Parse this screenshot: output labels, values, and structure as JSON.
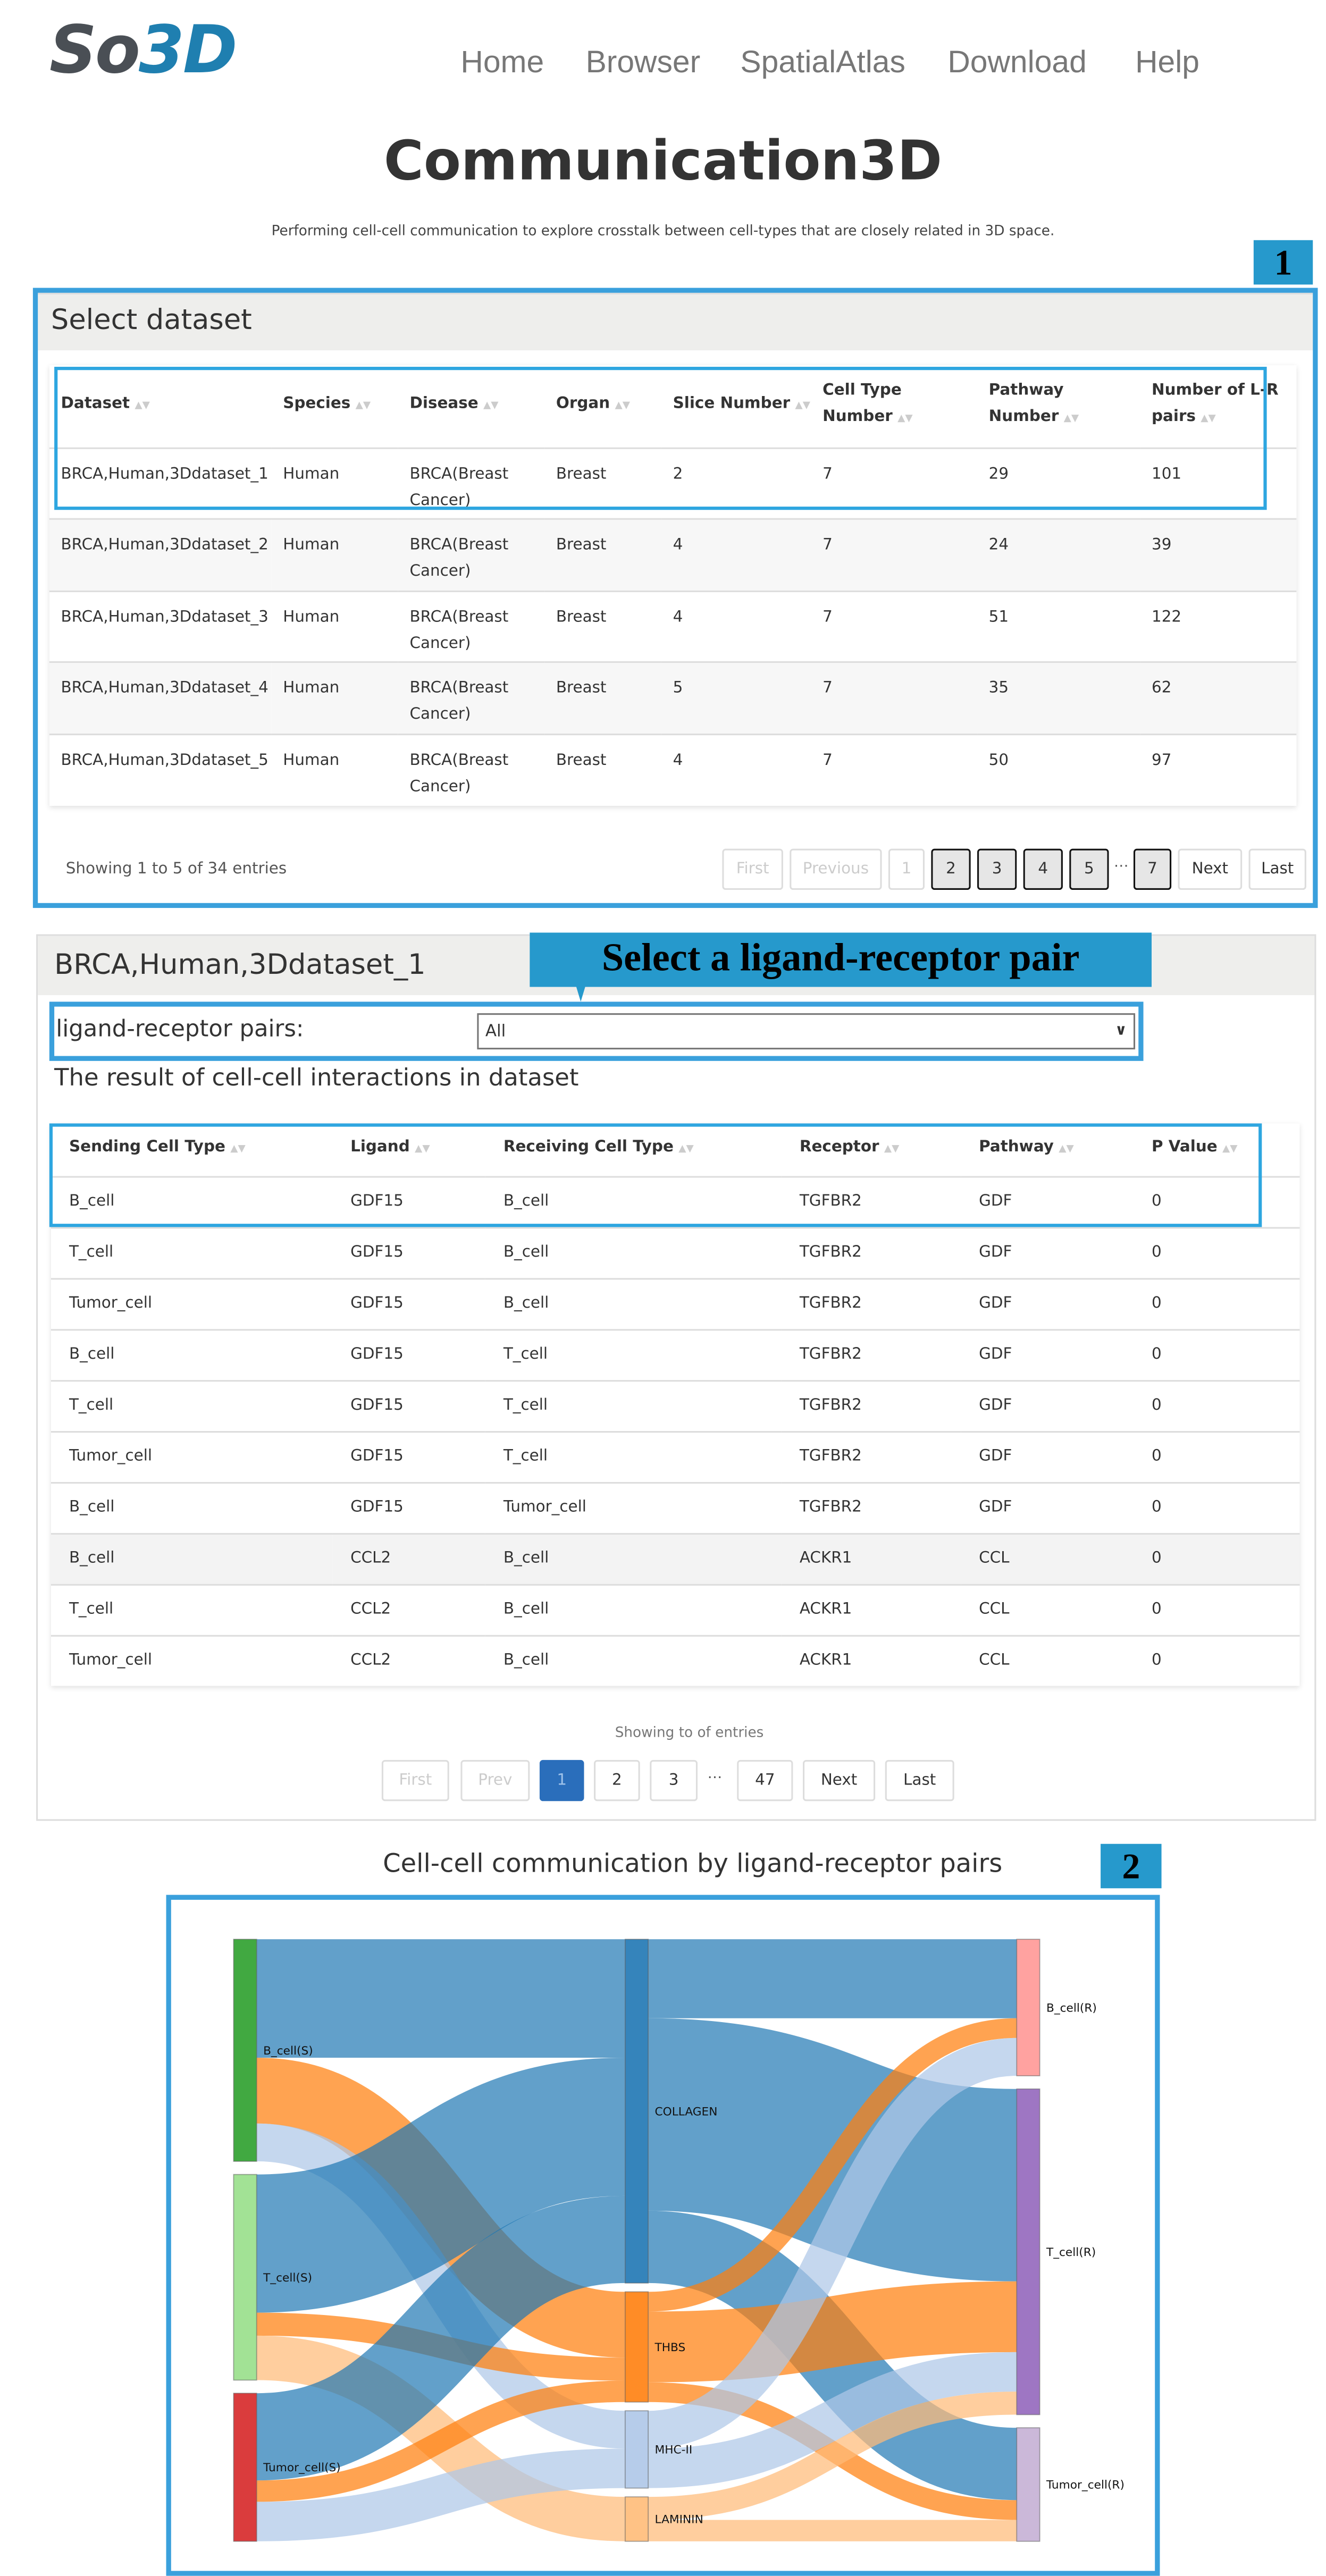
{
  "logo": {
    "part1": "So",
    "part2": "3D"
  },
  "nav": [
    {
      "label": "Home"
    },
    {
      "label": "Browser"
    },
    {
      "label": "SpatialAtlas"
    },
    {
      "label": "Download"
    },
    {
      "label": "Help"
    }
  ],
  "page": {
    "title": "Communication3D",
    "subtitle": "Performing cell-cell communication to explore crosstalk between cell-types that are closely related in 3D space."
  },
  "annotations": {
    "callout1": "1",
    "callout2": "2",
    "callout_lr": "Select a ligand-receptor pair"
  },
  "dataset_panel": {
    "heading": "Select dataset",
    "columns": [
      "Dataset",
      "Species",
      "Disease",
      "Organ",
      "Slice Number",
      "Cell Type Number",
      "Pathway Number",
      "Number of L-R pairs"
    ],
    "rows": [
      [
        "BRCA,Human,3Ddataset_1",
        "Human",
        "BRCA(Breast Cancer)",
        "Breast",
        "2",
        "7",
        "29",
        "101"
      ],
      [
        "BRCA,Human,3Ddataset_2",
        "Human",
        "BRCA(Breast Cancer)",
        "Breast",
        "4",
        "7",
        "24",
        "39"
      ],
      [
        "BRCA,Human,3Ddataset_3",
        "Human",
        "BRCA(Breast Cancer)",
        "Breast",
        "4",
        "7",
        "51",
        "122"
      ],
      [
        "BRCA,Human,3Ddataset_4",
        "Human",
        "BRCA(Breast Cancer)",
        "Breast",
        "5",
        "7",
        "35",
        "62"
      ],
      [
        "BRCA,Human,3Ddataset_5",
        "Human",
        "BRCA(Breast Cancer)",
        "Breast",
        "4",
        "7",
        "50",
        "97"
      ]
    ],
    "info": "Showing 1 to 5 of 34 entries",
    "pagination": {
      "first": "First",
      "previous": "Previous",
      "pages": [
        "1",
        "2",
        "3",
        "4",
        "5",
        "…",
        "7"
      ],
      "next": "Next",
      "last": "Last",
      "current": "1"
    }
  },
  "lr_panel": {
    "heading": "BRCA,Human,3Ddataset_1",
    "select_label": "ligand-receptor pairs:",
    "select_value": "All",
    "result_title": "The result of cell-cell interactions in dataset",
    "columns": [
      "Sending Cell Type",
      "Ligand",
      "Receiving Cell Type",
      "Receptor",
      "Pathway",
      "P Value"
    ],
    "rows": [
      [
        "B_cell",
        "GDF15",
        "B_cell",
        "TGFBR2",
        "GDF",
        "0"
      ],
      [
        "T_cell",
        "GDF15",
        "B_cell",
        "TGFBR2",
        "GDF",
        "0"
      ],
      [
        "Tumor_cell",
        "GDF15",
        "B_cell",
        "TGFBR2",
        "GDF",
        "0"
      ],
      [
        "B_cell",
        "GDF15",
        "T_cell",
        "TGFBR2",
        "GDF",
        "0"
      ],
      [
        "T_cell",
        "GDF15",
        "T_cell",
        "TGFBR2",
        "GDF",
        "0"
      ],
      [
        "Tumor_cell",
        "GDF15",
        "T_cell",
        "TGFBR2",
        "GDF",
        "0"
      ],
      [
        "B_cell",
        "GDF15",
        "Tumor_cell",
        "TGFBR2",
        "GDF",
        "0"
      ],
      [
        "B_cell",
        "CCL2",
        "B_cell",
        "ACKR1",
        "CCL",
        "0"
      ],
      [
        "T_cell",
        "CCL2",
        "B_cell",
        "ACKR1",
        "CCL",
        "0"
      ],
      [
        "Tumor_cell",
        "CCL2",
        "B_cell",
        "ACKR1",
        "CCL",
        "0"
      ]
    ],
    "info": "Showing to of entries",
    "pagination": {
      "first": "First",
      "prev": "Prev",
      "pages": [
        "1",
        "2",
        "3",
        "…",
        "47"
      ],
      "next": "Next",
      "last": "Last",
      "current": "1"
    }
  },
  "chart_data": {
    "type": "sankey",
    "title": "Cell-cell communication by ligand-receptor pairs",
    "nodes": [
      {
        "name": "B_cell(S)",
        "column": 0,
        "color": "#2ca02c"
      },
      {
        "name": "T_cell(S)",
        "column": 0,
        "color": "#98df8a"
      },
      {
        "name": "Tumor_cell(S)",
        "column": 0,
        "color": "#d62728"
      },
      {
        "name": "COLLAGEN",
        "column": 1,
        "color": "#1f77b4"
      },
      {
        "name": "THBS",
        "column": 1,
        "color": "#ff7f0e"
      },
      {
        "name": "MHC-II",
        "column": 1,
        "color": "#aec7e8"
      },
      {
        "name": "LAMININ",
        "column": 1,
        "color": "#ffbb78"
      },
      {
        "name": "B_cell(R)",
        "column": 2,
        "color": "#ff9896"
      },
      {
        "name": "T_cell(R)",
        "column": 2,
        "color": "#9467bd"
      },
      {
        "name": "Tumor_cell(R)",
        "column": 2,
        "color": "#c5b0d5"
      }
    ],
    "links": [
      {
        "source": "B_cell(S)",
        "target": "COLLAGEN",
        "value": 72
      },
      {
        "source": "B_cell(S)",
        "target": "THBS",
        "value": 40
      },
      {
        "source": "B_cell(S)",
        "target": "MHC-II",
        "value": 23
      },
      {
        "source": "T_cell(S)",
        "target": "COLLAGEN",
        "value": 84
      },
      {
        "source": "T_cell(S)",
        "target": "THBS",
        "value": 14
      },
      {
        "source": "T_cell(S)",
        "target": "LAMININ",
        "value": 27
      },
      {
        "source": "Tumor_cell(S)",
        "target": "COLLAGEN",
        "value": 53
      },
      {
        "source": "Tumor_cell(S)",
        "target": "THBS",
        "value": 13
      },
      {
        "source": "Tumor_cell(S)",
        "target": "MHC-II",
        "value": 24
      },
      {
        "source": "COLLAGEN",
        "target": "B_cell(R)",
        "value": 48
      },
      {
        "source": "COLLAGEN",
        "target": "T_cell(R)",
        "value": 117
      },
      {
        "source": "COLLAGEN",
        "target": "Tumor_cell(R)",
        "value": 44
      },
      {
        "source": "THBS",
        "target": "B_cell(R)",
        "value": 12
      },
      {
        "source": "THBS",
        "target": "T_cell(R)",
        "value": 43
      },
      {
        "source": "THBS",
        "target": "Tumor_cell(R)",
        "value": 12
      },
      {
        "source": "MHC-II",
        "target": "B_cell(R)",
        "value": 23
      },
      {
        "source": "MHC-II",
        "target": "T_cell(R)",
        "value": 24
      },
      {
        "source": "LAMININ",
        "target": "T_cell(R)",
        "value": 14
      },
      {
        "source": "LAMININ",
        "target": "Tumor_cell(R)",
        "value": 13
      }
    ]
  }
}
